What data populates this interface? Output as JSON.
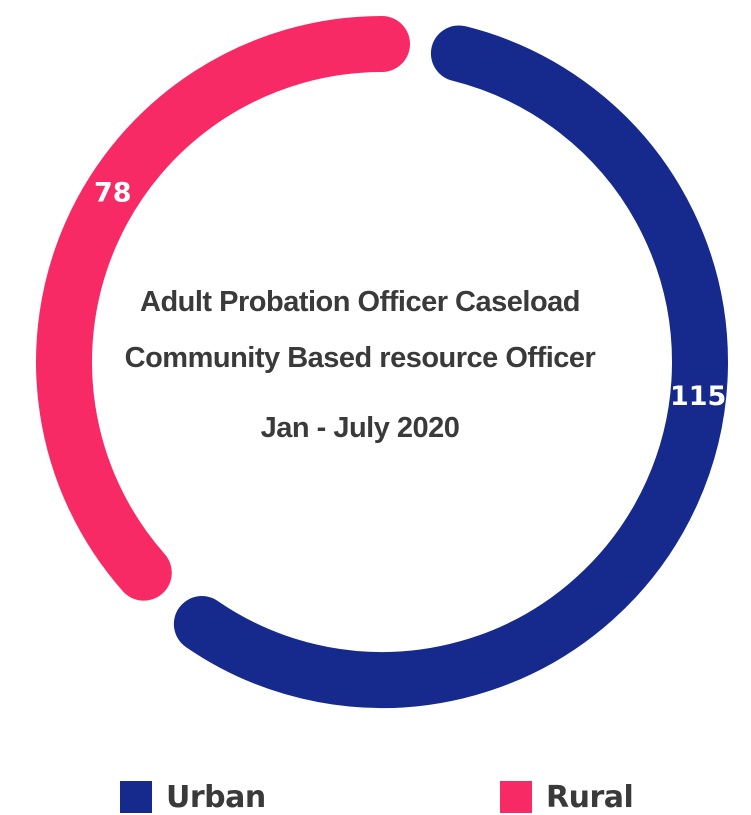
{
  "chart_data": {
    "type": "donut",
    "title": "Adult Probation Officer Caseload",
    "title_line_2": "Community Based resource Officer",
    "subtitle": "Jan - July 2020",
    "series": [
      {
        "name": "Urban",
        "value": 115,
        "color": "#162a8e"
      },
      {
        "name": "Rural",
        "value": 78,
        "color": "#f72a65"
      }
    ],
    "legend_position": "bottom",
    "data_labels": true
  }
}
